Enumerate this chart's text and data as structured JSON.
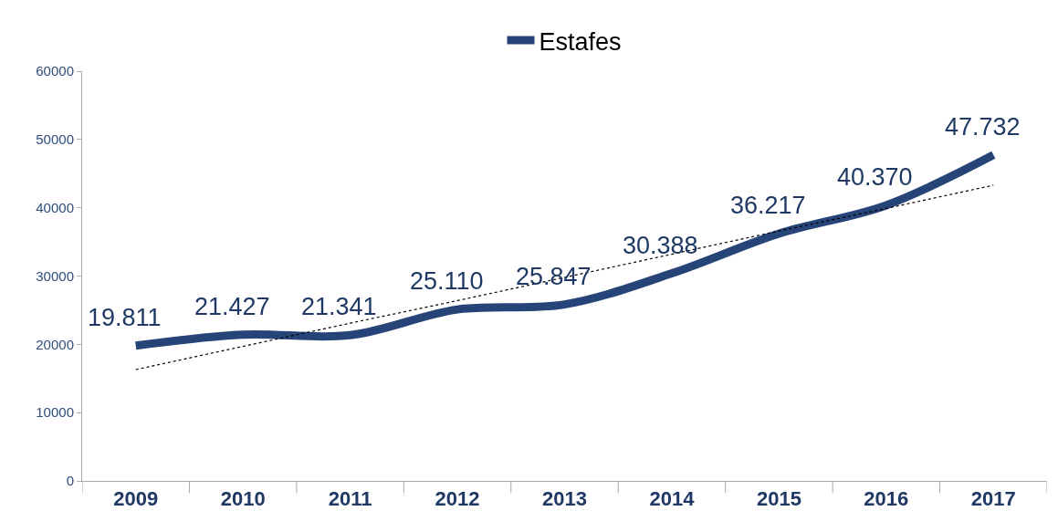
{
  "chart_data": {
    "type": "line",
    "categories": [
      "2009",
      "2010",
      "2011",
      "2012",
      "2013",
      "2014",
      "2015",
      "2016",
      "2017"
    ],
    "series": [
      {
        "name": "Estafes",
        "color": "#264478",
        "values": [
          19811,
          21427,
          21341,
          25110,
          25847,
          30388,
          36217,
          40370,
          47732
        ],
        "value_labels": [
          "19.811",
          "21.427",
          "21.341",
          "25.110",
          "25.847",
          "30.388",
          "36.217",
          "40.370",
          "47.732"
        ],
        "line_style": "solid"
      },
      {
        "type": "line",
        "color": "#000000",
        "values": [
          16300,
          19700,
          23100,
          26400,
          29800,
          33200,
          36600,
          39900,
          43300
        ],
        "line_style": "dotted"
      }
    ],
    "ylim": [
      0,
      60000
    ],
    "yticks": [
      0,
      10000,
      20000,
      30000,
      40000,
      50000,
      60000
    ],
    "legend": "top",
    "marker": "none"
  }
}
